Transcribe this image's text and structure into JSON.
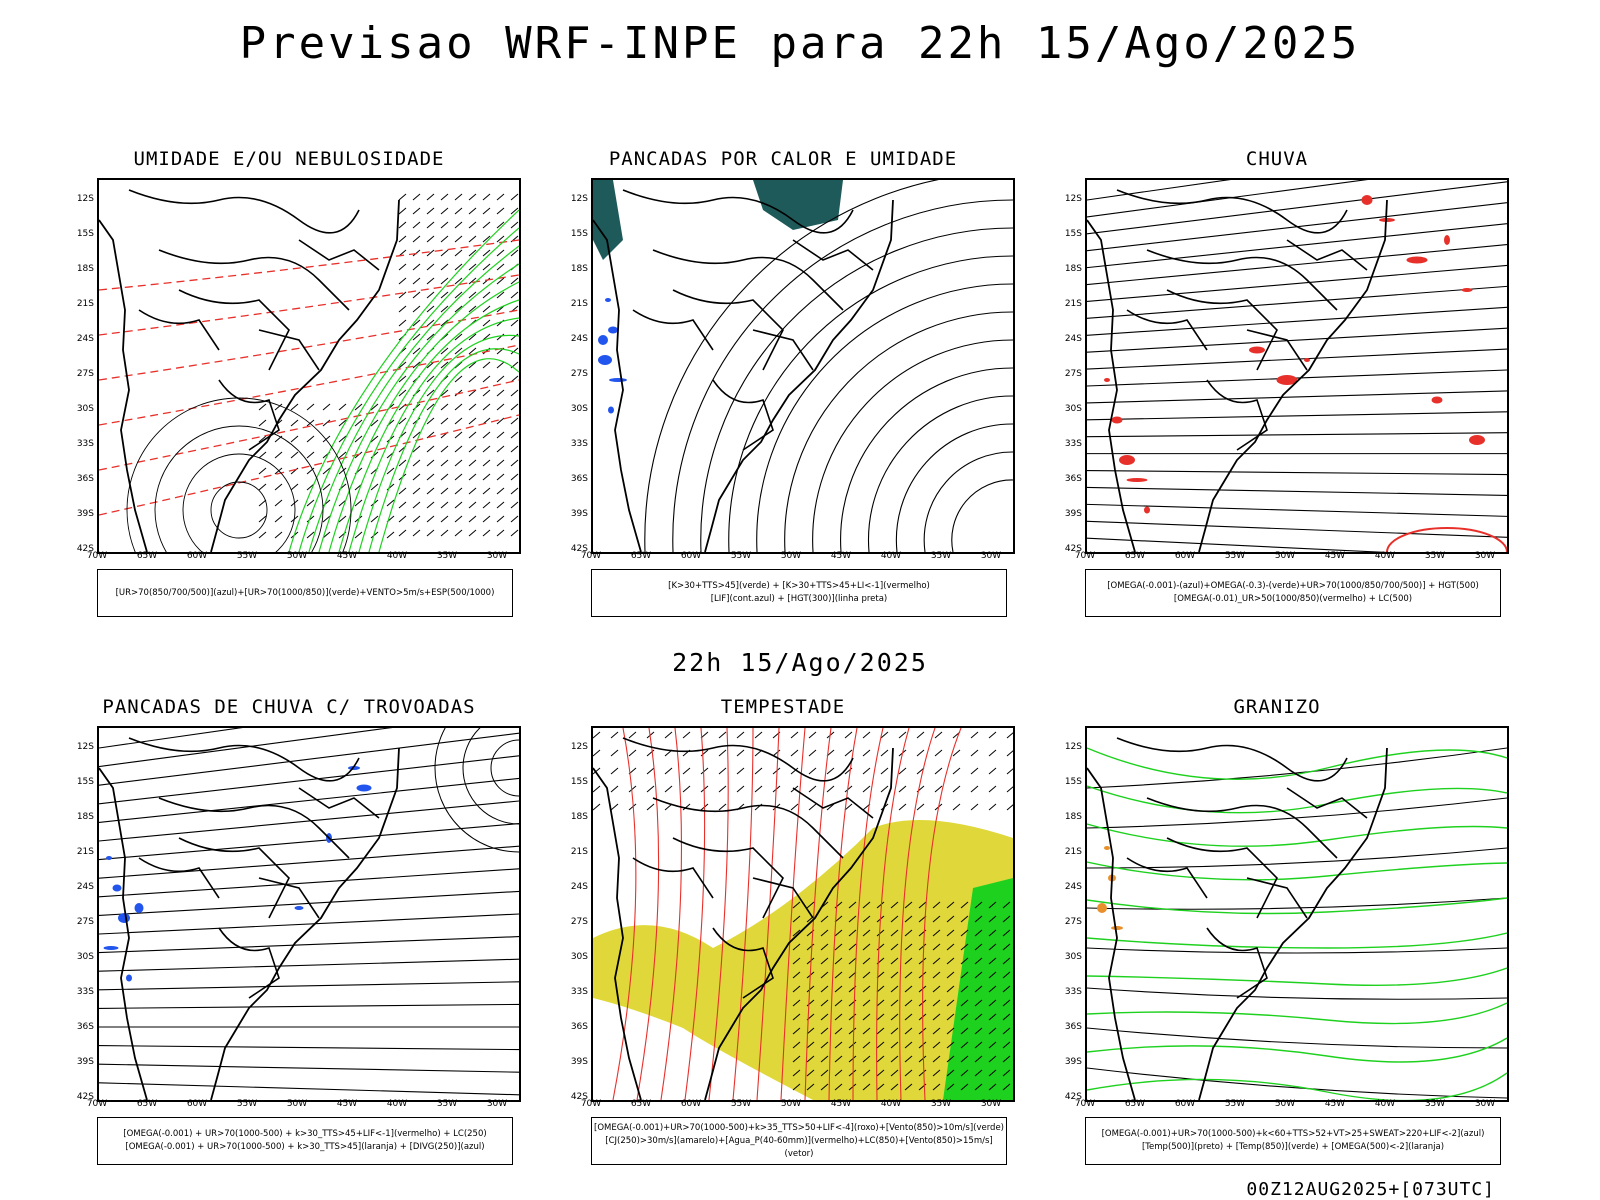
{
  "main_title": "Previsao WRF-INPE  para 22h 15/Ago/2025",
  "mid_title": "22h 15/Ago/2025",
  "footer": "00Z12AUG2025+[073UTC]",
  "lat_labels": [
    "12S",
    "15S",
    "18S",
    "21S",
    "24S",
    "27S",
    "30S",
    "33S",
    "36S",
    "39S",
    "42S"
  ],
  "lon_labels": [
    "70W",
    "65W",
    "60W",
    "55W",
    "50W",
    "45W",
    "40W",
    "35W",
    "30W"
  ],
  "panels": [
    {
      "title": "UMIDADE E/OU NEBULOSIDADE",
      "legend": [
        "[UR>70(850/700/500)](azul)+[UR>70(1000/850)](verde)+VENTO>5m/s+ESP(500/1000)"
      ]
    },
    {
      "title": "PANCADAS POR CALOR E UMIDADE",
      "legend": [
        "[K>30+TTS>45](verde) + [K>30+TTS>45+LI<-1](vermelho)",
        "[LIF](cont.azul) + [HGT(300)](linha preta)"
      ]
    },
    {
      "title": "CHUVA",
      "legend": [
        "[OMEGA(-0.001)-(azul)+OMEGA(-0.3)-(verde)+UR>70(1000/850/700/500)] + HGT(500)",
        "[OMEGA(-0.01)_UR>50(1000/850)(vermelho) + LC(500)"
      ]
    },
    {
      "title": "PANCADAS DE CHUVA C/ TROVOADAS",
      "legend": [
        "[OMEGA(-0.001) + UR>70(1000-500) + k>30_TTS>45+LIF<-1](vermelho) + LC(250)",
        "[OMEGA(-0.001) + UR>70(1000-500) + k>30_TTS>45](laranja) + [DIVG(250)](azul)"
      ]
    },
    {
      "title": "TEMPESTADE",
      "legend": [
        "[OMEGA(-0.001)+UR>70(1000-500)+k>35_TTS>50+LIF<-4](roxo)+[Vento(850)>10m/s](verde)",
        "[CJ(250)>30m/s](amarelo)+[Agua_P(40-60mm)](vermelho)+LC(850)+[Vento(850)>15m/s](vetor)"
      ]
    },
    {
      "title": "GRANIZO",
      "legend": [
        "[OMEGA(-0.001)+UR>70(1000-500)+k<60+TTS>52+VT>25+SWEAT>220+LIF<-2](azul)",
        "[Temp(500)](preto) + [Temp(850)](verde) + [OMEGA(500)<-2](laranja)"
      ]
    }
  ],
  "colors": {
    "black": "#000000",
    "red": "#e8302b",
    "green": "#1fd11f",
    "blue": "#2255ee",
    "yellow": "#e0d83a",
    "teal": "#1f5a5a",
    "orange": "#e8902b"
  }
}
